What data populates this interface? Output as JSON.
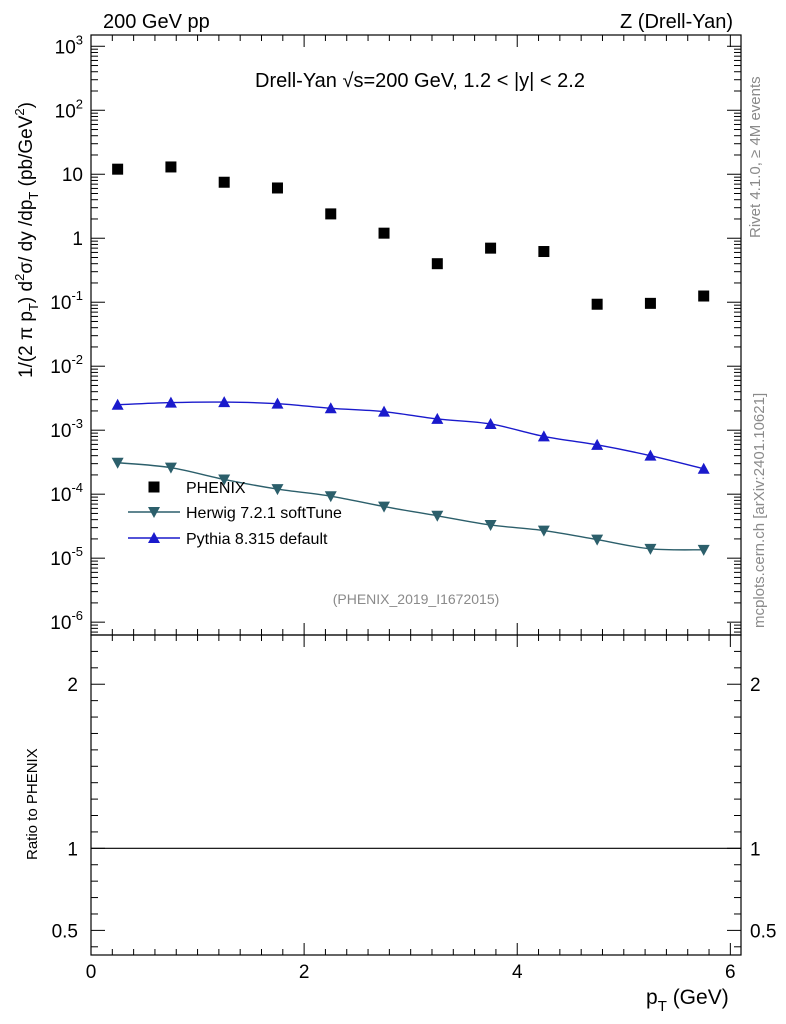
{
  "header": {
    "left_title": "200 GeV pp",
    "right_title": "Z (Drell-Yan)"
  },
  "side_labels": {
    "rivet": "Rivet 4.1.0, ≥ 4M events",
    "mcplots": "mcplots.cern.ch [arXiv:2401.10621]"
  },
  "chart_data": {
    "type": "scatter",
    "title": "Drell-Yan √s=200 GeV,  1.2 < |y| < 2.2",
    "analysis_tag": "(PHENIX_2019_I1672015)",
    "xlabel": "p_T (GeV)",
    "ylabel": "1/(2 π p_T) d²σ/ dy /dp_T (pb/GeV²)",
    "ratio_ylabel": "Ratio to PHENIX",
    "xlim": [
      0,
      6.1
    ],
    "ylim_log": [
      6.3e-07,
      1500
    ],
    "ratio_ylim": [
      0.35,
      2.3
    ],
    "x_ticks": [
      "0",
      "2",
      "4",
      "6"
    ],
    "y_ticks": [
      "10^-6",
      "10^-5",
      "10^-4",
      "10^-3",
      "10^-2",
      "10^-1",
      "1",
      "10",
      "10^2",
      "10^3"
    ],
    "ratio_ticks": [
      "0.5",
      "1",
      "2"
    ],
    "legend_position": "middle-left",
    "x": [
      0.25,
      0.75,
      1.25,
      1.75,
      2.25,
      2.75,
      3.25,
      3.75,
      4.25,
      4.75,
      5.25,
      5.75
    ],
    "series": [
      {
        "name": "PHENIX",
        "marker": "square",
        "color": "#000000",
        "values": [
          12,
          13,
          7.5,
          6.1,
          2.4,
          1.2,
          0.4,
          0.7,
          0.62,
          0.093,
          0.096,
          0.125
        ]
      },
      {
        "name": "Herwig 7.2.1 softTune",
        "marker": "triangle-down",
        "color": "#2c5f6b",
        "values": [
          0.00031,
          0.00026,
          0.00017,
          0.00012,
          9.3e-05,
          6.4e-05,
          4.6e-05,
          3.3e-05,
          2.7e-05,
          1.95e-05,
          1.4e-05,
          1.35e-05
        ]
      },
      {
        "name": "Pythia 8.315 default",
        "marker": "triangle-up",
        "color": "#1a1acc",
        "values": [
          0.0025,
          0.0027,
          0.00275,
          0.0026,
          0.0022,
          0.00195,
          0.0015,
          0.00125,
          0.0008,
          0.00059,
          0.0004,
          0.00025
        ]
      }
    ],
    "ratio_reference": 1
  }
}
